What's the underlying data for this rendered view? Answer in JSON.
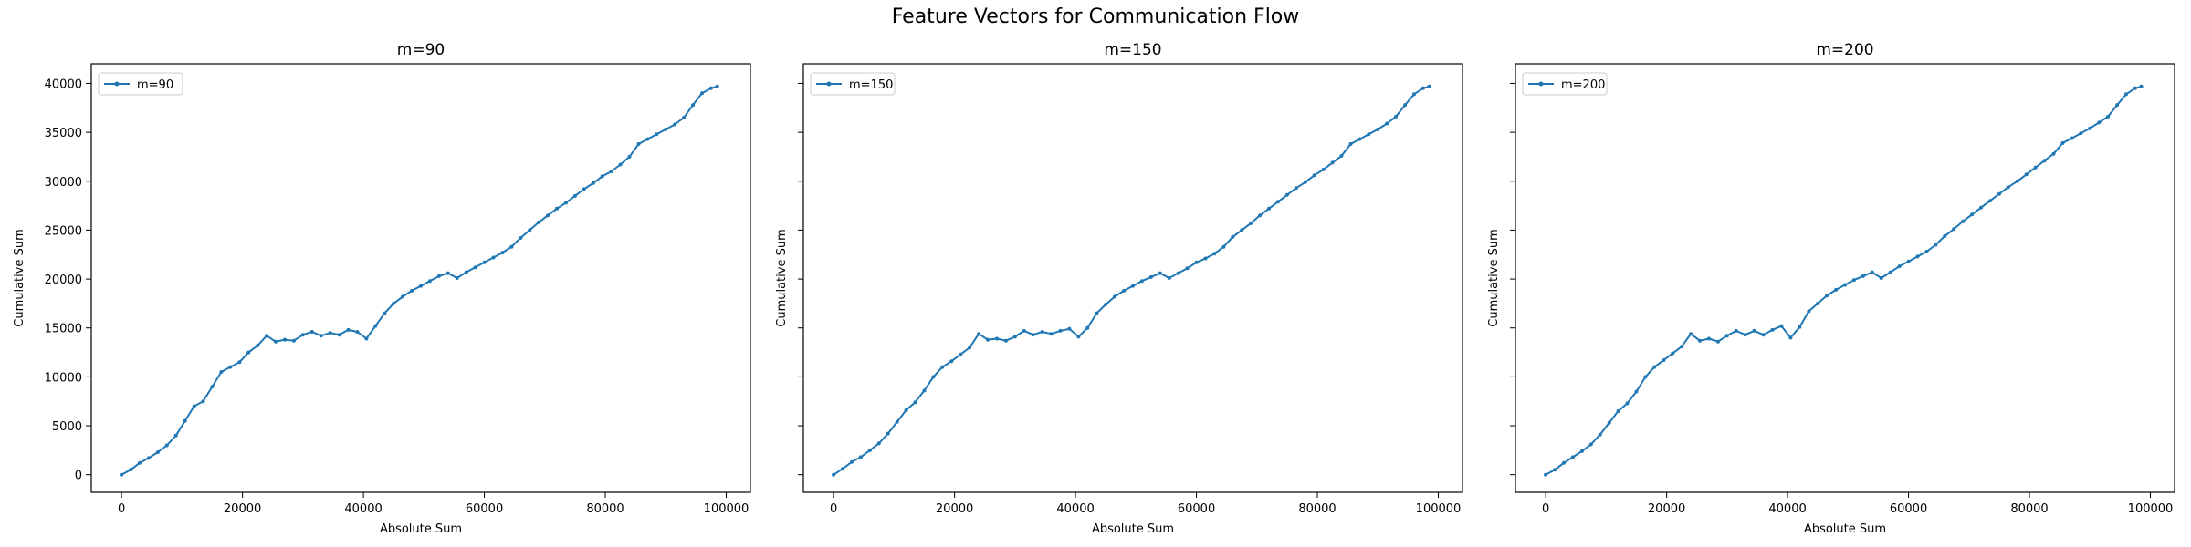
{
  "figure": {
    "title": "Feature Vectors for Communication Flow"
  },
  "chart_data": [
    {
      "type": "line",
      "title": "m=90",
      "xlabel": "Absolute Sum",
      "ylabel": "Cumulative Sum",
      "xlim": [
        -5000,
        104000
      ],
      "ylim": [
        -1800,
        42000
      ],
      "xticks": [
        0,
        20000,
        40000,
        60000,
        80000,
        100000
      ],
      "yticks": [
        0,
        5000,
        10000,
        15000,
        20000,
        25000,
        30000,
        35000,
        40000
      ],
      "legend_position": "top-left",
      "color": "#1f77b4",
      "series": [
        {
          "name": "m=90",
          "x": [
            0,
            1500,
            3000,
            4500,
            6000,
            7500,
            9000,
            10500,
            12000,
            13500,
            15000,
            16500,
            18000,
            19500,
            21000,
            22500,
            24000,
            25500,
            27000,
            28500,
            30000,
            31500,
            33000,
            34500,
            36000,
            37500,
            39000,
            40500,
            42000,
            43500,
            45000,
            46500,
            48000,
            49500,
            51000,
            52500,
            54000,
            55500,
            57000,
            58500,
            60000,
            61500,
            63000,
            64500,
            66000,
            67500,
            69000,
            70500,
            72000,
            73500,
            75000,
            76500,
            78000,
            79500,
            81000,
            82500,
            84000,
            85500,
            87000,
            88500,
            90000,
            91500,
            93000,
            94500,
            96000,
            97500,
            98500
          ],
          "y": [
            0,
            500,
            1200,
            1700,
            2300,
            3000,
            4000,
            5500,
            7000,
            7500,
            9000,
            10500,
            11000,
            11500,
            12500,
            13200,
            14200,
            13600,
            13800,
            13700,
            14300,
            14600,
            14200,
            14500,
            14300,
            14800,
            14600,
            13900,
            15200,
            16500,
            17500,
            18200,
            18800,
            19300,
            19800,
            20300,
            20600,
            20100,
            20700,
            21200,
            21700,
            22200,
            22700,
            23300,
            24200,
            25000,
            25800,
            26500,
            27200,
            27800,
            28500,
            29200,
            29800,
            30500,
            31000,
            31700,
            32500,
            33800,
            34300,
            34800,
            35300,
            35800,
            36500,
            37800,
            39000,
            39500,
            39700
          ]
        }
      ]
    },
    {
      "type": "line",
      "title": "m=150",
      "xlabel": "Absolute Sum",
      "ylabel": "Cumulative Sum",
      "xlim": [
        -5000,
        104000
      ],
      "ylim": [
        -1800,
        42000
      ],
      "xticks": [
        0,
        20000,
        40000,
        60000,
        80000,
        100000
      ],
      "yticks": [
        0,
        5000,
        10000,
        15000,
        20000,
        25000,
        30000,
        35000,
        40000
      ],
      "legend_position": "top-left",
      "color": "#1f77b4",
      "series": [
        {
          "name": "m=150",
          "x": [
            0,
            1500,
            3000,
            4500,
            6000,
            7500,
            9000,
            10500,
            12000,
            13500,
            15000,
            16500,
            18000,
            19500,
            21000,
            22500,
            24000,
            25500,
            27000,
            28500,
            30000,
            31500,
            33000,
            34500,
            36000,
            37500,
            39000,
            40500,
            42000,
            43500,
            45000,
            46500,
            48000,
            49500,
            51000,
            52500,
            54000,
            55500,
            57000,
            58500,
            60000,
            61500,
            63000,
            64500,
            66000,
            67500,
            69000,
            70500,
            72000,
            73500,
            75000,
            76500,
            78000,
            79500,
            81000,
            82500,
            84000,
            85500,
            87000,
            88500,
            90000,
            91500,
            93000,
            94500,
            96000,
            97500,
            98500
          ],
          "y": [
            0,
            600,
            1300,
            1800,
            2500,
            3200,
            4200,
            5400,
            6600,
            7400,
            8600,
            10000,
            11000,
            11600,
            12300,
            13000,
            14400,
            13800,
            13900,
            13700,
            14100,
            14700,
            14300,
            14600,
            14400,
            14700,
            14900,
            14100,
            15000,
            16500,
            17400,
            18200,
            18800,
            19300,
            19800,
            20200,
            20600,
            20100,
            20600,
            21100,
            21700,
            22100,
            22600,
            23300,
            24300,
            25000,
            25700,
            26500,
            27200,
            27900,
            28600,
            29300,
            29900,
            30600,
            31200,
            31900,
            32600,
            33800,
            34300,
            34800,
            35300,
            35900,
            36600,
            37800,
            38900,
            39500,
            39700
          ]
        }
      ]
    },
    {
      "type": "line",
      "title": "m=200",
      "xlabel": "Absolute Sum",
      "ylabel": "Cumulative Sum",
      "xlim": [
        -5000,
        104000
      ],
      "ylim": [
        -1800,
        42000
      ],
      "xticks": [
        0,
        20000,
        40000,
        60000,
        80000,
        100000
      ],
      "yticks": [
        0,
        5000,
        10000,
        15000,
        20000,
        25000,
        30000,
        35000,
        40000
      ],
      "legend_position": "top-left",
      "color": "#1f77b4",
      "series": [
        {
          "name": "m=200",
          "x": [
            0,
            1500,
            3000,
            4500,
            6000,
            7500,
            9000,
            10500,
            12000,
            13500,
            15000,
            16500,
            18000,
            19500,
            21000,
            22500,
            24000,
            25500,
            27000,
            28500,
            30000,
            31500,
            33000,
            34500,
            36000,
            37500,
            39000,
            40500,
            42000,
            43500,
            45000,
            46500,
            48000,
            49500,
            51000,
            52500,
            54000,
            55500,
            57000,
            58500,
            60000,
            61500,
            63000,
            64500,
            66000,
            67500,
            69000,
            70500,
            72000,
            73500,
            75000,
            76500,
            78000,
            79500,
            81000,
            82500,
            84000,
            85500,
            87000,
            88500,
            90000,
            91500,
            93000,
            94500,
            96000,
            97500,
            98500
          ],
          "y": [
            0,
            500,
            1200,
            1800,
            2400,
            3100,
            4100,
            5300,
            6500,
            7300,
            8500,
            10000,
            11000,
            11700,
            12400,
            13100,
            14400,
            13700,
            13900,
            13600,
            14200,
            14700,
            14300,
            14700,
            14300,
            14800,
            15200,
            14000,
            15100,
            16700,
            17500,
            18300,
            18900,
            19400,
            19900,
            20300,
            20700,
            20100,
            20700,
            21300,
            21800,
            22300,
            22800,
            23500,
            24400,
            25100,
            25900,
            26600,
            27300,
            28000,
            28700,
            29400,
            30000,
            30700,
            31400,
            32100,
            32800,
            33900,
            34400,
            34900,
            35400,
            36000,
            36600,
            37800,
            38900,
            39500,
            39700
          ]
        }
      ]
    }
  ]
}
